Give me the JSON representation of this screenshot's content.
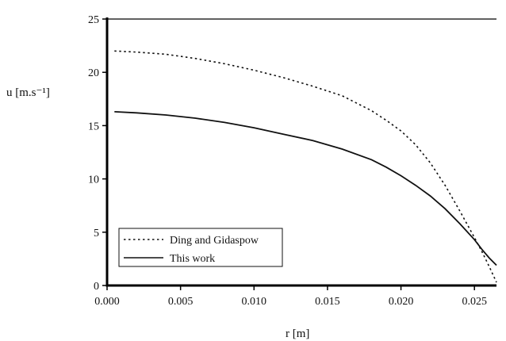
{
  "chart_data": {
    "type": "line",
    "xlabel": "r [m]",
    "ylabel": "u [m.s⁻¹]",
    "xlim": [
      0,
      0.0265
    ],
    "ylim": [
      0,
      25
    ],
    "x_ticks": [
      "0.000",
      "0.005",
      "0.010",
      "0.015",
      "0.020",
      "0.025"
    ],
    "y_ticks": [
      "0",
      "5",
      "10",
      "15",
      "20",
      "25"
    ],
    "grid": false,
    "legend_position": "bottom-left",
    "series": [
      {
        "name": "Ding and Gidaspow",
        "style": "dotted",
        "x": [
          0.0005,
          0.002,
          0.004,
          0.006,
          0.008,
          0.01,
          0.012,
          0.014,
          0.016,
          0.018,
          0.019,
          0.02,
          0.021,
          0.022,
          0.023,
          0.024,
          0.025,
          0.0255,
          0.026,
          0.0265
        ],
        "y": [
          22.0,
          21.9,
          21.7,
          21.3,
          20.8,
          20.2,
          19.5,
          18.7,
          17.8,
          16.4,
          15.5,
          14.5,
          13.2,
          11.5,
          9.4,
          7.0,
          4.5,
          3.2,
          1.8,
          0.3
        ]
      },
      {
        "name": "This work",
        "style": "solid",
        "x": [
          0.0005,
          0.002,
          0.004,
          0.006,
          0.008,
          0.01,
          0.012,
          0.014,
          0.016,
          0.018,
          0.019,
          0.02,
          0.021,
          0.022,
          0.023,
          0.024,
          0.025,
          0.0255,
          0.026,
          0.0265
        ],
        "y": [
          16.3,
          16.2,
          16.0,
          15.7,
          15.3,
          14.8,
          14.2,
          13.6,
          12.8,
          11.8,
          11.1,
          10.3,
          9.4,
          8.4,
          7.2,
          5.8,
          4.3,
          3.4,
          2.6,
          1.9
        ]
      }
    ]
  }
}
